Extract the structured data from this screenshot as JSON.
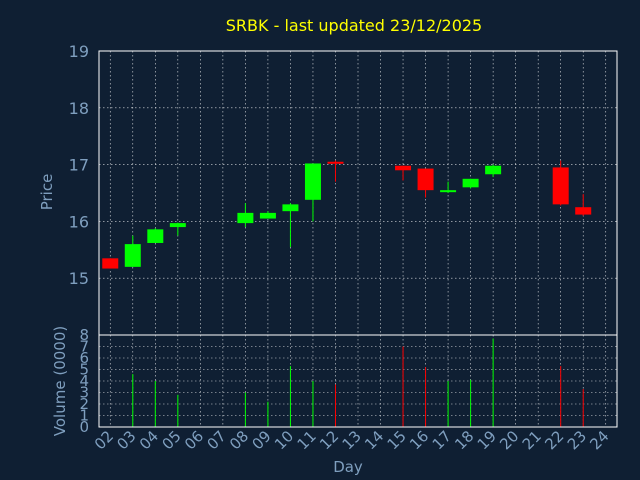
{
  "chart_data": {
    "type": "candlestick",
    "title": "SRBK - last updated 23/12/2025",
    "xlabel": "Day",
    "price_ylabel": "Price",
    "volume_ylabel": "Volume (0000)",
    "price_ylim": [
      14.0,
      19.0
    ],
    "price_yticks": [
      "15",
      "16",
      "17",
      "18",
      "19"
    ],
    "volume_ylim": [
      0,
      8
    ],
    "volume_yticks": [
      "0",
      "1",
      "2",
      "3",
      "4",
      "5",
      "6",
      "7",
      "8"
    ],
    "x_categories": [
      "02",
      "03",
      "04",
      "05",
      "06",
      "07",
      "08",
      "09",
      "10",
      "11",
      "12",
      "13",
      "14",
      "15",
      "16",
      "17",
      "18",
      "19",
      "20",
      "21",
      "22",
      "23",
      "24"
    ],
    "grid": true,
    "colors": {
      "up": "#00ff00",
      "down": "#ff0000",
      "grid": "#ffffff",
      "axis": "#ffffff",
      "text": "#7f9fbf",
      "title": "#ffff00",
      "background": "#0f1f33"
    },
    "candles": [
      {
        "day": "02",
        "open": 15.35,
        "high": 15.35,
        "low": 15.17,
        "close": 15.17,
        "volume": 0
      },
      {
        "day": "03",
        "open": 15.2,
        "high": 15.75,
        "low": 15.2,
        "close": 15.6,
        "volume": 4.6
      },
      {
        "day": "04",
        "open": 15.62,
        "high": 15.88,
        "low": 15.62,
        "close": 15.86,
        "volume": 4.0
      },
      {
        "day": "05",
        "open": 15.9,
        "high": 15.98,
        "low": 15.75,
        "close": 15.97,
        "volume": 2.8
      },
      {
        "day": "08",
        "open": 15.97,
        "high": 16.32,
        "low": 15.9,
        "close": 16.15,
        "volume": 3.0
      },
      {
        "day": "09",
        "open": 16.05,
        "high": 16.18,
        "low": 16.05,
        "close": 16.15,
        "volume": 2.2
      },
      {
        "day": "10",
        "open": 16.18,
        "high": 16.32,
        "low": 15.55,
        "close": 16.3,
        "volume": 5.3
      },
      {
        "day": "11",
        "open": 16.38,
        "high": 17.02,
        "low": 16.0,
        "close": 17.02,
        "volume": 4.0
      },
      {
        "day": "12",
        "open": 17.05,
        "high": 17.07,
        "low": 16.7,
        "close": 17.02,
        "volume": 3.7
      },
      {
        "day": "15",
        "open": 16.98,
        "high": 16.98,
        "low": 16.72,
        "close": 16.9,
        "volume": 7.0
      },
      {
        "day": "16",
        "open": 16.93,
        "high": 16.93,
        "low": 16.42,
        "close": 16.55,
        "volume": 5.2
      },
      {
        "day": "17",
        "open": 16.52,
        "high": 16.7,
        "low": 16.5,
        "close": 16.55,
        "volume": 4.0
      },
      {
        "day": "18",
        "open": 16.6,
        "high": 16.75,
        "low": 16.58,
        "close": 16.75,
        "volume": 4.1
      },
      {
        "day": "19",
        "open": 16.83,
        "high": 17.0,
        "low": 16.78,
        "close": 16.98,
        "volume": 7.7
      },
      {
        "day": "22",
        "open": 16.95,
        "high": 17.07,
        "low": 16.28,
        "close": 16.3,
        "volume": 5.3
      },
      {
        "day": "23",
        "open": 16.25,
        "high": 16.48,
        "low": 16.1,
        "close": 16.12,
        "volume": 3.3
      }
    ]
  }
}
